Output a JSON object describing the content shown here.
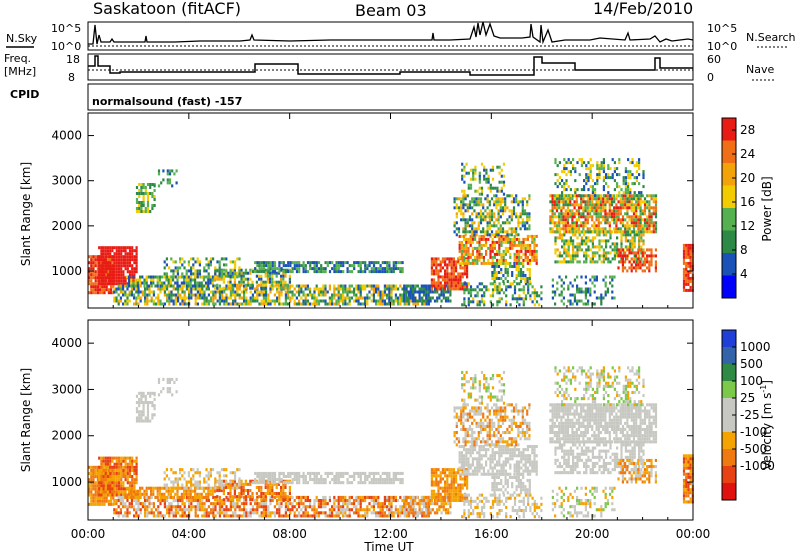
{
  "header": {
    "station": "Saskatoon (fitACF)",
    "beam": "Beam 03",
    "date": "14/Feb/2010"
  },
  "noise_panel": {
    "left_label": "N.Sky",
    "right_label": "N.Search",
    "left_ticks": [
      "10^5",
      "10^0"
    ],
    "right_ticks": [
      "10^5",
      "10^0"
    ]
  },
  "freq_panel": {
    "left_label_line1": "Freq.",
    "left_label_line2": "[MHz]",
    "right_label": "Nave",
    "left_ticks": [
      "18",
      "8"
    ],
    "right_ticks": [
      "60",
      "0"
    ]
  },
  "cpid": {
    "label": "CPID",
    "value": "normalsound (fast) -157"
  },
  "colors": {
    "power_scale": [
      "#0000ff",
      "#1a52b8",
      "#2d8a46",
      "#55b050",
      "#f2cc00",
      "#f2a30a",
      "#f06e16",
      "#e81c14"
    ],
    "velocity_scale": [
      "#1f3fd6",
      "#3363a8",
      "#2e8a44",
      "#7cc84a",
      "#c8c8c2",
      "#c8c8c2",
      "#f5a300",
      "#f07a12",
      "#e84214",
      "#e0120f"
    ]
  },
  "chart_data": [
    {
      "type": "heatmap",
      "title": "Power",
      "xlabel": "",
      "ylabel": "Slant Range [km]",
      "xlim": [
        "00:00",
        "24:00"
      ],
      "ylim": [
        180,
        4500
      ],
      "x_ticks": [
        "00:00",
        "04:00",
        "08:00",
        "12:00",
        "16:00",
        "20:00",
        "00:00"
      ],
      "y_ticks": [
        "1000",
        "2000",
        "3000",
        "4000"
      ],
      "colorbar": {
        "label": "Power [dB]",
        "ticks": [
          "4",
          "8",
          "12",
          "16",
          "20",
          "24",
          "28"
        ],
        "range": [
          0,
          30
        ]
      }
    },
    {
      "type": "heatmap",
      "title": "Velocity",
      "xlabel": "Time UT",
      "ylabel": "Slant Range [km]",
      "xlim": [
        "00:00",
        "24:00"
      ],
      "ylim": [
        180,
        4500
      ],
      "x_ticks": [
        "00:00",
        "04:00",
        "08:00",
        "12:00",
        "16:00",
        "20:00",
        "00:00"
      ],
      "y_ticks": [
        "1000",
        "2000",
        "3000",
        "4000"
      ],
      "colorbar": {
        "label": "Velocity [m s^-1]",
        "ticks": [
          "1000",
          "500",
          "100",
          "25",
          "-25",
          "-100",
          "-500",
          "-1000"
        ]
      }
    }
  ]
}
